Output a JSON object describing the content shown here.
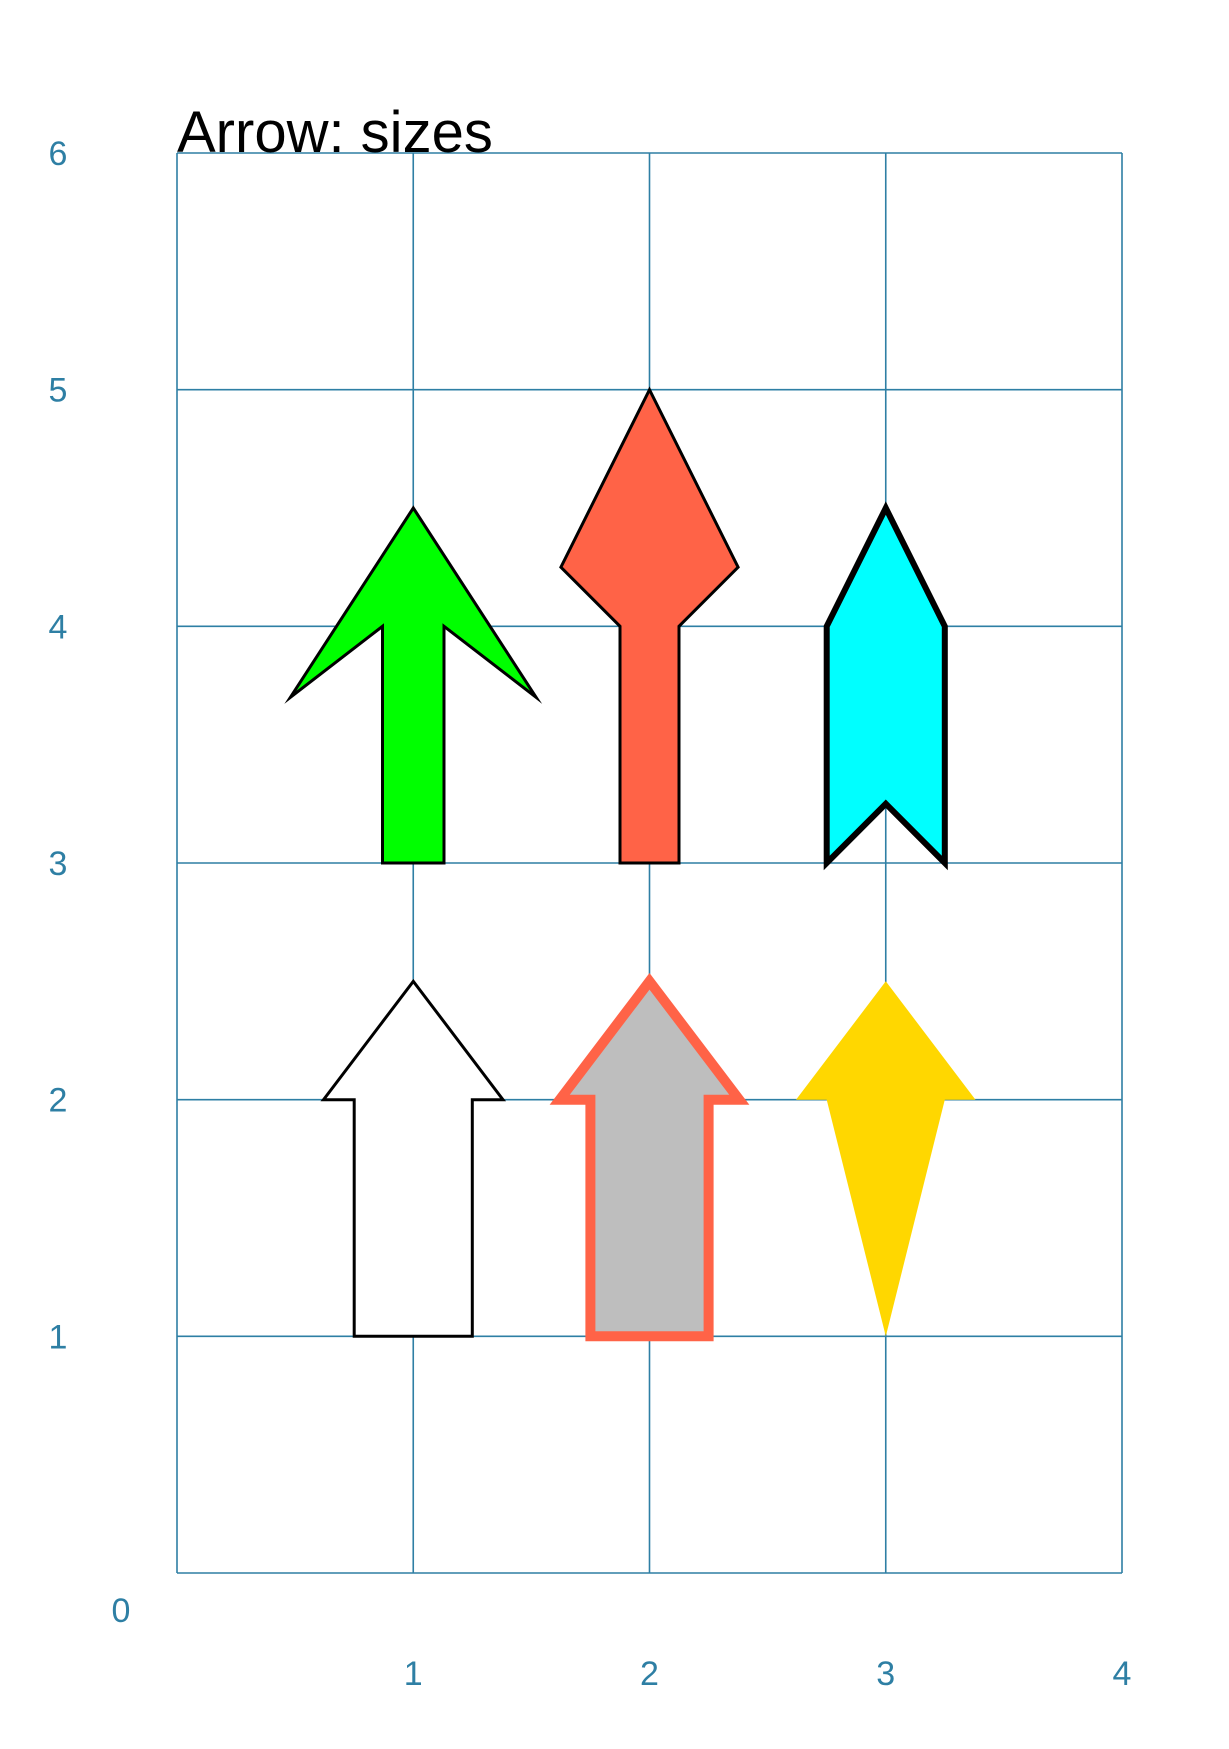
{
  "title": "Arrow: sizes",
  "colors": {
    "grid": "#2e7fa4",
    "tick_label": "#2e7fa4"
  },
  "axes": {
    "x_ticks": [
      {
        "value": 1,
        "label": "1"
      },
      {
        "value": 2,
        "label": "2"
      },
      {
        "value": 3,
        "label": "3"
      },
      {
        "value": 4,
        "label": "4"
      }
    ],
    "y_ticks": [
      {
        "value": 0,
        "label": "0"
      },
      {
        "value": 1,
        "label": "1"
      },
      {
        "value": 2,
        "label": "2"
      },
      {
        "value": 3,
        "label": "3"
      },
      {
        "value": 4,
        "label": "4"
      },
      {
        "value": 5,
        "label": "5"
      },
      {
        "value": 6,
        "label": "6"
      }
    ],
    "xlim": [
      0,
      4
    ],
    "ylim": [
      0,
      6
    ]
  },
  "arrows": [
    {
      "name": "green-arrow",
      "fill": "#00ff00",
      "stroke": "#000000",
      "polygon": [
        [
          0.87,
          3
        ],
        [
          1.13,
          3
        ],
        [
          1.13,
          4
        ],
        [
          1.52,
          3.7
        ],
        [
          1,
          4.5
        ],
        [
          0.48,
          3.7
        ],
        [
          0.87,
          4
        ]
      ]
    },
    {
      "name": "tomato-arrow",
      "fill": "#ff6347",
      "stroke": "#000000",
      "polygon": [
        [
          1.875,
          3
        ],
        [
          2.125,
          3
        ],
        [
          2.125,
          4
        ],
        [
          2.375,
          4.25
        ],
        [
          2,
          5
        ],
        [
          1.625,
          4.25
        ],
        [
          1.875,
          4
        ]
      ]
    },
    {
      "name": "cyan-arrow",
      "fill": "#00ffff",
      "stroke": "#000000",
      "polygon": [
        [
          2.75,
          3
        ],
        [
          3,
          3.25
        ],
        [
          3.25,
          3
        ],
        [
          3.25,
          4
        ],
        [
          3,
          4.5
        ],
        [
          2.75,
          4
        ]
      ]
    },
    {
      "name": "white-arrow",
      "fill": "#ffffff",
      "stroke": "#000000",
      "polygon": [
        [
          0.75,
          1
        ],
        [
          1.25,
          1
        ],
        [
          1.25,
          2
        ],
        [
          1.38,
          2
        ],
        [
          1,
          2.5
        ],
        [
          0.62,
          2
        ],
        [
          0.75,
          2
        ]
      ]
    },
    {
      "name": "gray-arrow",
      "fill": "#bebebe",
      "stroke": "#ff6347",
      "polygon": [
        [
          1.75,
          1
        ],
        [
          2.25,
          1
        ],
        [
          2.25,
          2
        ],
        [
          2.38,
          2
        ],
        [
          2,
          2.5
        ],
        [
          1.62,
          2
        ],
        [
          1.75,
          2
        ]
      ]
    },
    {
      "name": "gold-arrow",
      "fill": "#ffd700",
      "stroke": "none",
      "polygon": [
        [
          3,
          1
        ],
        [
          3.25,
          2
        ],
        [
          3.38,
          2
        ],
        [
          3,
          2.5
        ],
        [
          2.62,
          2
        ],
        [
          2.75,
          2
        ]
      ]
    }
  ]
}
